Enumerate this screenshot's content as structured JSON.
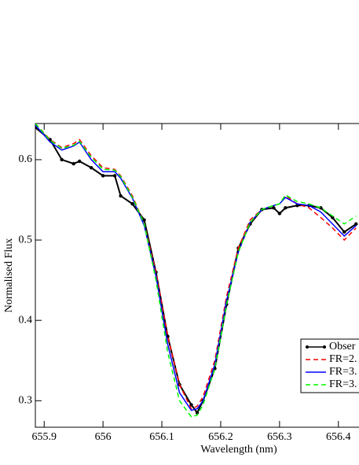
{
  "chart_data": {
    "type": "line",
    "xlabel": "Wavelength (nm)",
    "ylabel": "Normalised Flux",
    "x": [
      655.885,
      655.91,
      655.93,
      655.95,
      655.96,
      655.98,
      656.0,
      656.02,
      656.03,
      656.05,
      656.07,
      656.09,
      656.11,
      656.13,
      656.15,
      656.16,
      656.17,
      656.19,
      656.21,
      656.23,
      656.25,
      656.27,
      656.29,
      656.3,
      656.31,
      656.33,
      656.35,
      656.37,
      656.39,
      656.41,
      656.43
    ],
    "series": [
      {
        "name": "Obser",
        "color": "#000000",
        "dash": "solid",
        "markers": true,
        "values": [
          0.64,
          0.625,
          0.6,
          0.595,
          0.598,
          0.59,
          0.58,
          0.58,
          0.555,
          0.545,
          0.525,
          0.46,
          0.38,
          0.32,
          0.295,
          0.285,
          0.3,
          0.34,
          0.42,
          0.49,
          0.52,
          0.538,
          0.54,
          0.533,
          0.54,
          0.543,
          0.543,
          0.54,
          0.528,
          0.51,
          0.52
        ]
      },
      {
        "name": "FR=2.",
        "color": "#ff0000",
        "dash": "dashed",
        "markers": false,
        "values": [
          0.645,
          0.625,
          0.615,
          0.62,
          0.625,
          0.605,
          0.59,
          0.588,
          0.58,
          0.555,
          0.52,
          0.46,
          0.38,
          0.32,
          0.29,
          0.293,
          0.305,
          0.35,
          0.43,
          0.49,
          0.525,
          0.538,
          0.543,
          0.545,
          0.555,
          0.545,
          0.54,
          0.528,
          0.515,
          0.5,
          0.515
        ]
      },
      {
        "name": "FR=3.",
        "color": "#0000ff",
        "dash": "solid",
        "markers": false,
        "values": [
          0.643,
          0.622,
          0.612,
          0.617,
          0.622,
          0.6,
          0.585,
          0.585,
          0.577,
          0.552,
          0.518,
          0.455,
          0.37,
          0.31,
          0.288,
          0.29,
          0.3,
          0.345,
          0.425,
          0.485,
          0.522,
          0.538,
          0.543,
          0.545,
          0.553,
          0.545,
          0.543,
          0.535,
          0.52,
          0.505,
          0.518
        ]
      },
      {
        "name": "FR=3.",
        "color": "#00ff00",
        "dash": "dashed",
        "markers": false,
        "values": [
          0.645,
          0.624,
          0.614,
          0.618,
          0.623,
          0.603,
          0.588,
          0.587,
          0.579,
          0.553,
          0.52,
          0.45,
          0.36,
          0.3,
          0.28,
          0.282,
          0.295,
          0.34,
          0.42,
          0.485,
          0.522,
          0.538,
          0.543,
          0.545,
          0.556,
          0.548,
          0.545,
          0.54,
          0.53,
          0.52,
          0.53
        ]
      }
    ],
    "xlim": [
      655.885,
      656.435
    ],
    "ylim": [
      0.267,
      0.645
    ],
    "xticks": [
      655.9,
      656,
      656.1,
      656.2,
      656.3,
      656.4
    ],
    "yticks": [
      0.3,
      0.4,
      0.5,
      0.6
    ],
    "legend": "lower right"
  }
}
